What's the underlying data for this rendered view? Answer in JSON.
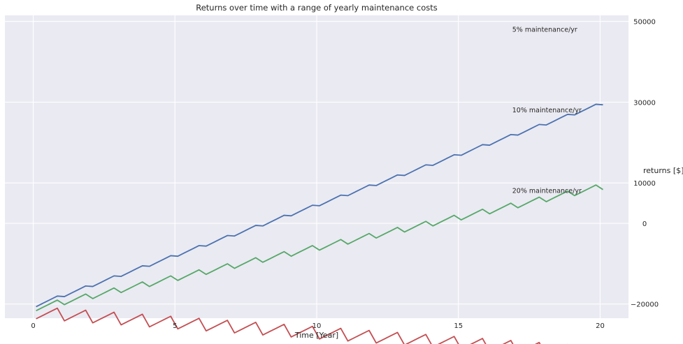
{
  "chart_data": {
    "type": "line",
    "title": "Returns over time with a range of yearly maintenance costs",
    "xlabel": "Time [Year]",
    "ylabel": "returns [$]",
    "xlim": [
      -1,
      21
    ],
    "ylim": [
      -23500,
      51500
    ],
    "xticks": [
      0,
      5,
      10,
      15,
      20
    ],
    "yticks": [
      -20000,
      0,
      10000,
      30000,
      50000
    ],
    "ytick_labels": [
      "−20000",
      "0",
      "10000",
      "30000",
      "50000"
    ],
    "grid": true,
    "y_axis_side": "right",
    "series": [
      {
        "name": "5% maintenance/yr",
        "color": "#4C72B0",
        "rate": 0.05
      },
      {
        "name": "10% maintenance/yr",
        "color": "#55A868",
        "rate": 0.1
      },
      {
        "name": "20% maintenance/yr",
        "color": "#C44E52",
        "rate": 0.2
      }
    ],
    "model": {
      "initial_cost": -20000,
      "investment_value": 20000,
      "gross_yearly_return": 3500,
      "time_step": 0.25,
      "t_start": 0.1,
      "t_end": 20.1
    },
    "annotations": [
      {
        "text": "5% maintenance/yr",
        "x": 16.9,
        "y": 48000
      },
      {
        "text": "10% maintenance/yr",
        "x": 16.9,
        "y": 28000
      },
      {
        "text": "20% maintenance/yr",
        "x": 16.9,
        "y": 8000
      }
    ]
  }
}
